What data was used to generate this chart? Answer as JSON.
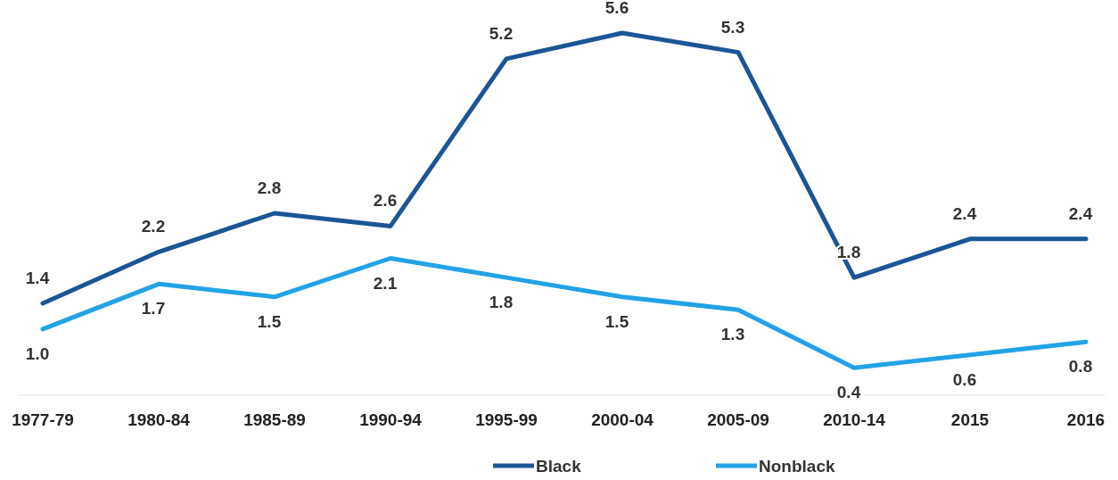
{
  "chart_data": {
    "type": "line",
    "categories": [
      "1977-79",
      "1980-84",
      "1985-89",
      "1990-94",
      "1995-99",
      "2000-04",
      "2005-09",
      "2010-14",
      "2015",
      "2016"
    ],
    "series": [
      {
        "name": "Black",
        "color": "#1b5597",
        "values": [
          1.4,
          2.2,
          2.8,
          2.6,
          5.2,
          5.6,
          5.3,
          1.8,
          2.4,
          2.4
        ],
        "value_labels": [
          "1.4",
          "2.2",
          "2.8",
          "2.6",
          "5.2",
          "5.6",
          "5.3",
          "1.8",
          "2.4",
          "2.4"
        ]
      },
      {
        "name": "Nonblack",
        "color": "#22a3e6",
        "values": [
          1.0,
          1.7,
          1.5,
          2.1,
          1.8,
          1.5,
          1.3,
          0.4,
          0.6,
          0.8
        ],
        "value_labels": [
          "1.0",
          "1.7",
          "1.5",
          "2.1",
          "1.8",
          "1.5",
          "1.3",
          "0.4",
          "0.6",
          "0.8"
        ]
      }
    ],
    "legend": "bottom",
    "grid": false,
    "marker": "none",
    "line_style": "solid"
  }
}
